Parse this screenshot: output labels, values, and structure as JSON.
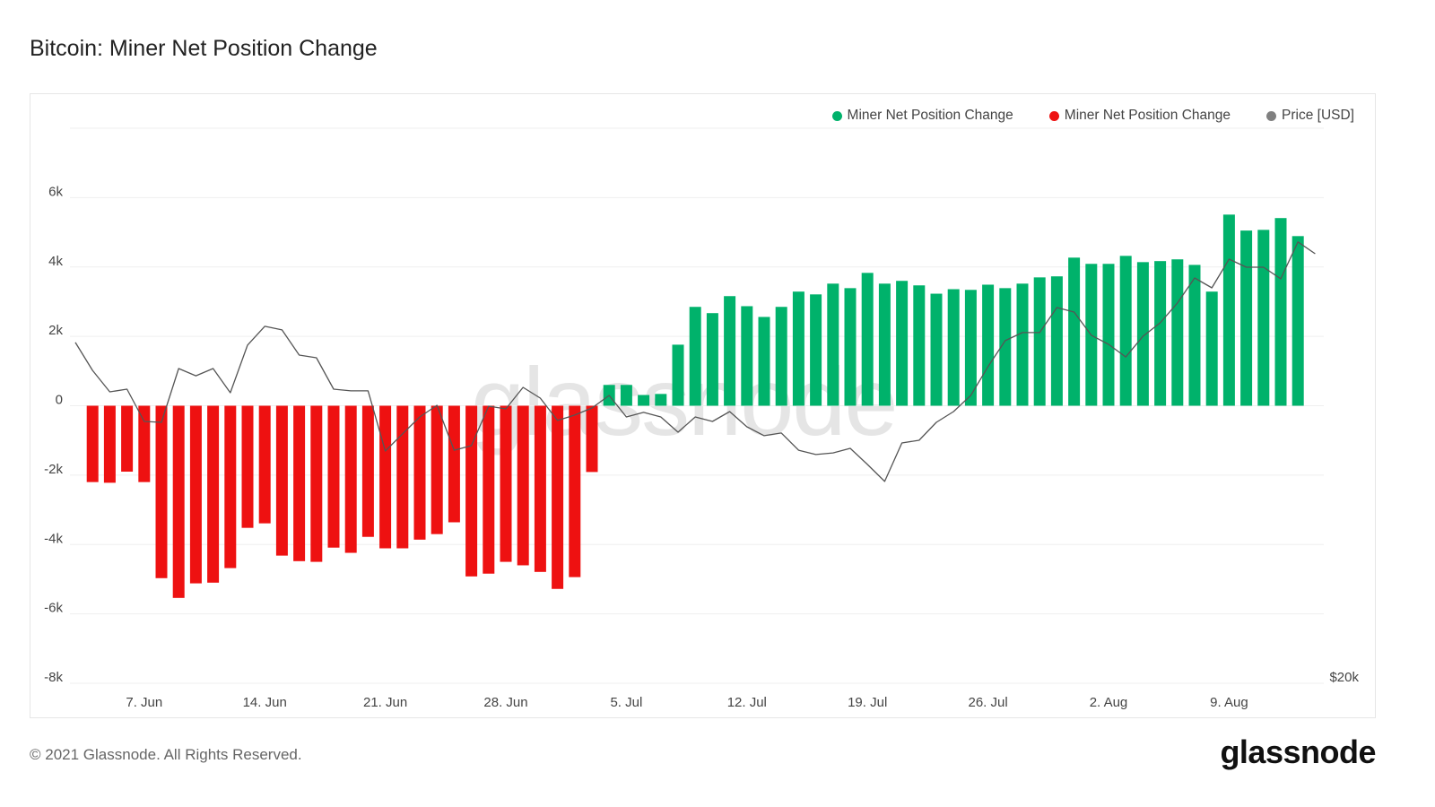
{
  "title": "Bitcoin: Miner Net Position Change",
  "footer": "© 2021 Glassnode. All Rights Reserved.",
  "logo": "glassnode",
  "watermark": "glassnode",
  "chart_data": {
    "type": "bar",
    "title": "Bitcoin: Miner Net Position Change",
    "legend_position": "top-right",
    "grid": true,
    "legend": [
      {
        "label": "Miner Net Position Change",
        "color": "#00b26b"
      },
      {
        "label": "Miner Net Position Change",
        "color": "#ee1111"
      },
      {
        "label": "Price [USD]",
        "color": "#808080"
      }
    ],
    "y_axis": {
      "ylim": [
        -8000,
        8000
      ],
      "ticks": [
        "-8k",
        "-6k",
        "-4k",
        "-2k",
        "0",
        "2k",
        "4k",
        "6k"
      ],
      "tick_values": [
        -8000,
        -6000,
        -4000,
        -2000,
        0,
        2000,
        4000,
        6000
      ]
    },
    "y2_axis": {
      "ticks": [
        "$20k"
      ],
      "tick_values": [
        20000
      ],
      "ylim": [
        20000,
        46840
      ]
    },
    "x_ticks": [
      {
        "label": "7. Jun",
        "date": "2021-06-07"
      },
      {
        "label": "14. Jun",
        "date": "2021-06-14"
      },
      {
        "label": "21. Jun",
        "date": "2021-06-21"
      },
      {
        "label": "28. Jun",
        "date": "2021-06-28"
      },
      {
        "label": "5. Jul",
        "date": "2021-07-05"
      },
      {
        "label": "12. Jul",
        "date": "2021-07-12"
      },
      {
        "label": "19. Jul",
        "date": "2021-07-19"
      },
      {
        "label": "26. Jul",
        "date": "2021-07-26"
      },
      {
        "label": "2. Aug",
        "date": "2021-08-02"
      },
      {
        "label": "9. Aug",
        "date": "2021-08-09"
      }
    ],
    "positive_color": "#00b26b",
    "negative_color": "#ee1111",
    "bars": {
      "name": "Miner Net Position Change",
      "dates": [
        "2021-06-04",
        "2021-06-05",
        "2021-06-06",
        "2021-06-07",
        "2021-06-08",
        "2021-06-09",
        "2021-06-10",
        "2021-06-11",
        "2021-06-12",
        "2021-06-13",
        "2021-06-14",
        "2021-06-15",
        "2021-06-16",
        "2021-06-17",
        "2021-06-18",
        "2021-06-19",
        "2021-06-20",
        "2021-06-21",
        "2021-06-22",
        "2021-06-23",
        "2021-06-24",
        "2021-06-25",
        "2021-06-26",
        "2021-06-27",
        "2021-06-28",
        "2021-06-29",
        "2021-06-30",
        "2021-07-01",
        "2021-07-02",
        "2021-07-03",
        "2021-07-04",
        "2021-07-05",
        "2021-07-06",
        "2021-07-07",
        "2021-07-08",
        "2021-07-09",
        "2021-07-10",
        "2021-07-11",
        "2021-07-12",
        "2021-07-13",
        "2021-07-14",
        "2021-07-15",
        "2021-07-16",
        "2021-07-17",
        "2021-07-18",
        "2021-07-19",
        "2021-07-20",
        "2021-07-21",
        "2021-07-22",
        "2021-07-23",
        "2021-07-24",
        "2021-07-25",
        "2021-07-26",
        "2021-07-27",
        "2021-07-28",
        "2021-07-29",
        "2021-07-30",
        "2021-07-31",
        "2021-08-01",
        "2021-08-02",
        "2021-08-03",
        "2021-08-04",
        "2021-08-05",
        "2021-08-06",
        "2021-08-07",
        "2021-08-08",
        "2021-08-09",
        "2021-08-10",
        "2021-08-11",
        "2021-08-12",
        "2021-08-13"
      ],
      "values": [
        -2200,
        -2220,
        -1900,
        -2200,
        -4970,
        -5540,
        -5120,
        -5100,
        -4680,
        -3520,
        -3390,
        -4320,
        -4480,
        -4500,
        -4090,
        -4240,
        -3780,
        -4110,
        -4110,
        -3860,
        -3700,
        -3360,
        -4920,
        -4840,
        -4500,
        -4600,
        -4790,
        -5280,
        -4940,
        -1910,
        600,
        600,
        310,
        340,
        1760,
        2850,
        2670,
        3160,
        2870,
        2560,
        2850,
        3290,
        3210,
        3520,
        3390,
        3830,
        3520,
        3600,
        3470,
        3230,
        3360,
        3340,
        3490,
        3390,
        3520,
        3700,
        3730,
        4270,
        4090,
        4090,
        4320,
        4140,
        4170,
        4220,
        4060,
        3290,
        5510,
        5050,
        5070,
        5410,
        4890
      ]
    },
    "price": {
      "name": "Price [USD]",
      "color": "#808080",
      "dates": [
        "2021-06-03",
        "2021-06-04",
        "2021-06-05",
        "2021-06-06",
        "2021-06-07",
        "2021-06-08",
        "2021-06-09",
        "2021-06-10",
        "2021-06-11",
        "2021-06-12",
        "2021-06-13",
        "2021-06-14",
        "2021-06-15",
        "2021-06-16",
        "2021-06-17",
        "2021-06-18",
        "2021-06-19",
        "2021-06-20",
        "2021-06-21",
        "2021-06-22",
        "2021-06-23",
        "2021-06-24",
        "2021-06-25",
        "2021-06-26",
        "2021-06-27",
        "2021-06-28",
        "2021-06-29",
        "2021-06-30",
        "2021-07-01",
        "2021-07-02",
        "2021-07-03",
        "2021-07-04",
        "2021-07-05",
        "2021-07-06",
        "2021-07-07",
        "2021-07-08",
        "2021-07-09",
        "2021-07-10",
        "2021-07-11",
        "2021-07-12",
        "2021-07-13",
        "2021-07-14",
        "2021-07-15",
        "2021-07-16",
        "2021-07-17",
        "2021-07-18",
        "2021-07-19",
        "2021-07-20",
        "2021-07-21",
        "2021-07-22",
        "2021-07-23",
        "2021-07-24",
        "2021-07-25",
        "2021-07-26",
        "2021-07-27",
        "2021-07-28",
        "2021-07-29",
        "2021-07-30",
        "2021-07-31",
        "2021-08-01",
        "2021-08-02",
        "2021-08-03",
        "2021-08-04",
        "2021-08-05",
        "2021-08-06",
        "2021-08-07",
        "2021-08-08",
        "2021-08-09",
        "2021-08-10",
        "2021-08-11",
        "2021-08-12",
        "2021-08-13",
        "2021-08-14"
      ],
      "values": [
        36480,
        35130,
        34090,
        34220,
        32660,
        32620,
        35220,
        34870,
        35220,
        34050,
        36350,
        37260,
        37090,
        35870,
        35740,
        34220,
        34140,
        34140,
        31230,
        32060,
        32880,
        33440,
        31270,
        31490,
        33400,
        33270,
        34310,
        33790,
        32710,
        32970,
        33310,
        33920,
        32880,
        33100,
        32880,
        32140,
        32880,
        32660,
        33140,
        32400,
        31970,
        32100,
        31270,
        31060,
        31140,
        31360,
        30580,
        29760,
        31620,
        31750,
        32620,
        33140,
        33920,
        35310,
        36570,
        36960,
        36960,
        38170,
        37950,
        36830,
        36390,
        35780,
        36780,
        37430,
        38390,
        39600,
        39120,
        40510,
        40120,
        40120,
        39560,
        41340,
        40770
      ]
    }
  }
}
